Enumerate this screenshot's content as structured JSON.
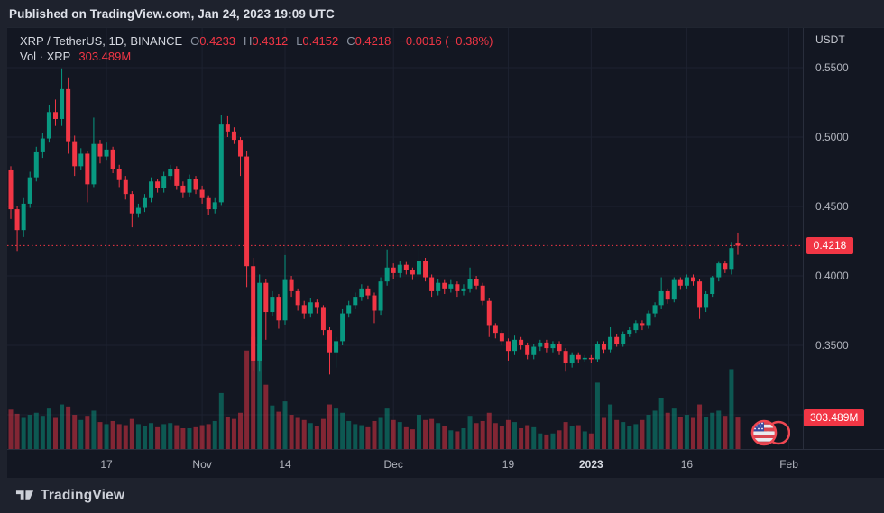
{
  "published_bar": {
    "text": "Published on TradingView.com, Jan 24, 2023 19:09 UTC"
  },
  "legend": {
    "symbol": "XRP / TetherUS, 1D, BINANCE",
    "open": {
      "label": "O",
      "value": "0.4233"
    },
    "high": {
      "label": "H",
      "value": "0.4312"
    },
    "low": {
      "label": "L",
      "value": "0.4152"
    },
    "close": {
      "label": "C",
      "value": "0.4218"
    },
    "change": "−0.0016 (−0.38%)",
    "volume_label": "Vol · XRP",
    "volume_value": "303.489M"
  },
  "price_axis": {
    "currency": "USDT",
    "ticks": [
      {
        "label": "0.5500",
        "value": 0.55
      },
      {
        "label": "0.5000",
        "value": 0.5
      },
      {
        "label": "0.4500",
        "value": 0.45
      },
      {
        "label": "0.4000",
        "value": 0.4
      },
      {
        "label": "0.3500",
        "value": 0.35
      }
    ],
    "last_price_badge": "0.4218",
    "volume_badge": "303.489M"
  },
  "time_axis": {
    "ticks": [
      {
        "label": "17",
        "day_index": 15,
        "bold": false
      },
      {
        "label": "Nov",
        "day_index": 30,
        "bold": false
      },
      {
        "label": "14",
        "day_index": 43,
        "bold": false
      },
      {
        "label": "Dec",
        "day_index": 60,
        "bold": false
      },
      {
        "label": "19",
        "day_index": 78,
        "bold": false
      },
      {
        "label": "2023",
        "day_index": 91,
        "bold": true
      },
      {
        "label": "16",
        "day_index": 106,
        "bold": false
      },
      {
        "label": "Feb",
        "day_index": 122,
        "bold": false
      }
    ]
  },
  "footer": {
    "logo_text": "TradingView"
  },
  "event_marker": {
    "name": "us-economic-events",
    "flag": "US"
  },
  "colors": {
    "up": "#089981",
    "down": "#f23645",
    "background": "#131722",
    "outer_background": "#1e222d",
    "grid": "#1d2230",
    "text_primary": "#d1d4dc",
    "text_secondary": "#b2b5be",
    "badge": "#f23645"
  },
  "chart_data": {
    "type": "candlestick",
    "title": "XRP / TetherUS",
    "exchange": "BINANCE",
    "interval": "1D",
    "quote_currency": "USDT",
    "start_date": "2022-10-02",
    "end_date": "2023-01-24",
    "ylim": [
      0.3,
      0.575
    ],
    "grid": true,
    "grid_price_levels": [
      0.55,
      0.5,
      0.45,
      0.4,
      0.35,
      0.3
    ],
    "last_open": 0.4233,
    "last_high": 0.4312,
    "last_low": 0.4152,
    "last_close": 0.4218,
    "last_change": -0.0016,
    "last_change_pct": -0.38,
    "last_volume_m": 303.489,
    "volume_unit": "millions",
    "candles_format": [
      "open",
      "high",
      "low",
      "close",
      "volume_m"
    ],
    "candles": [
      [
        0.476,
        0.479,
        0.441,
        0.448,
        380
      ],
      [
        0.448,
        0.45,
        0.418,
        0.433,
        340
      ],
      [
        0.433,
        0.456,
        0.428,
        0.452,
        300
      ],
      [
        0.452,
        0.475,
        0.449,
        0.471,
        330
      ],
      [
        0.471,
        0.493,
        0.468,
        0.489,
        350
      ],
      [
        0.489,
        0.503,
        0.485,
        0.499,
        320
      ],
      [
        0.499,
        0.523,
        0.496,
        0.518,
        390
      ],
      [
        0.518,
        0.527,
        0.508,
        0.513,
        300
      ],
      [
        0.513,
        0.5495,
        0.508,
        0.5345,
        430
      ],
      [
        0.5345,
        0.543,
        0.488,
        0.497,
        410
      ],
      [
        0.497,
        0.501,
        0.472,
        0.479,
        330
      ],
      [
        0.479,
        0.492,
        0.476,
        0.488,
        280
      ],
      [
        0.488,
        0.49,
        0.453,
        0.466,
        320
      ],
      [
        0.466,
        0.514,
        0.464,
        0.495,
        370
      ],
      [
        0.495,
        0.498,
        0.481,
        0.486,
        260
      ],
      [
        0.486,
        0.496,
        0.483,
        0.491,
        240
      ],
      [
        0.491,
        0.493,
        0.474,
        0.477,
        270
      ],
      [
        0.477,
        0.48,
        0.464,
        0.469,
        240
      ],
      [
        0.469,
        0.472,
        0.455,
        0.459,
        230
      ],
      [
        0.459,
        0.461,
        0.435,
        0.445,
        290
      ],
      [
        0.445,
        0.452,
        0.442,
        0.449,
        240
      ],
      [
        0.449,
        0.459,
        0.446,
        0.456,
        220
      ],
      [
        0.456,
        0.471,
        0.453,
        0.468,
        250
      ],
      [
        0.468,
        0.47,
        0.46,
        0.463,
        210
      ],
      [
        0.463,
        0.475,
        0.46,
        0.472,
        240
      ],
      [
        0.472,
        0.48,
        0.469,
        0.477,
        250
      ],
      [
        0.477,
        0.479,
        0.462,
        0.465,
        230
      ],
      [
        0.465,
        0.468,
        0.456,
        0.46,
        200
      ],
      [
        0.46,
        0.473,
        0.457,
        0.47,
        200
      ],
      [
        0.47,
        0.472,
        0.459,
        0.462,
        210
      ],
      [
        0.462,
        0.465,
        0.452,
        0.456,
        230
      ],
      [
        0.456,
        0.458,
        0.444,
        0.448,
        240
      ],
      [
        0.448,
        0.456,
        0.445,
        0.453,
        270
      ],
      [
        0.453,
        0.516,
        0.451,
        0.509,
        540
      ],
      [
        0.509,
        0.515,
        0.5,
        0.504,
        310
      ],
      [
        0.504,
        0.507,
        0.495,
        0.498,
        290
      ],
      [
        0.498,
        0.5,
        0.472,
        0.486,
        350
      ],
      [
        0.486,
        0.49,
        0.392,
        0.407,
        950
      ],
      [
        0.407,
        0.413,
        0.332,
        0.339,
        1080
      ],
      [
        0.339,
        0.401,
        0.331,
        0.395,
        1010
      ],
      [
        0.395,
        0.398,
        0.354,
        0.374,
        620
      ],
      [
        0.374,
        0.389,
        0.371,
        0.385,
        420
      ],
      [
        0.385,
        0.387,
        0.362,
        0.368,
        360
      ],
      [
        0.368,
        0.415,
        0.365,
        0.397,
        460
      ],
      [
        0.397,
        0.4,
        0.385,
        0.389,
        330
      ],
      [
        0.389,
        0.391,
        0.375,
        0.379,
        300
      ],
      [
        0.379,
        0.382,
        0.369,
        0.373,
        280
      ],
      [
        0.373,
        0.384,
        0.37,
        0.381,
        250
      ],
      [
        0.381,
        0.383,
        0.373,
        0.377,
        220
      ],
      [
        0.377,
        0.379,
        0.357,
        0.361,
        290
      ],
      [
        0.361,
        0.363,
        0.329,
        0.345,
        430
      ],
      [
        0.345,
        0.356,
        0.334,
        0.353,
        390
      ],
      [
        0.353,
        0.376,
        0.35,
        0.373,
        350
      ],
      [
        0.373,
        0.382,
        0.37,
        0.379,
        270
      ],
      [
        0.379,
        0.388,
        0.376,
        0.385,
        240
      ],
      [
        0.385,
        0.394,
        0.382,
        0.391,
        230
      ],
      [
        0.391,
        0.393,
        0.383,
        0.386,
        210
      ],
      [
        0.386,
        0.388,
        0.366,
        0.375,
        270
      ],
      [
        0.375,
        0.399,
        0.372,
        0.396,
        300
      ],
      [
        0.396,
        0.419,
        0.393,
        0.406,
        390
      ],
      [
        0.406,
        0.409,
        0.398,
        0.402,
        280
      ],
      [
        0.402,
        0.411,
        0.399,
        0.408,
        260
      ],
      [
        0.408,
        0.41,
        0.401,
        0.404,
        210
      ],
      [
        0.404,
        0.406,
        0.397,
        0.401,
        190
      ],
      [
        0.401,
        0.421,
        0.398,
        0.411,
        330
      ],
      [
        0.411,
        0.413,
        0.396,
        0.399,
        280
      ],
      [
        0.399,
        0.401,
        0.385,
        0.389,
        290
      ],
      [
        0.389,
        0.398,
        0.386,
        0.395,
        250
      ],
      [
        0.395,
        0.397,
        0.387,
        0.391,
        220
      ],
      [
        0.391,
        0.397,
        0.388,
        0.394,
        180
      ],
      [
        0.394,
        0.396,
        0.385,
        0.389,
        170
      ],
      [
        0.389,
        0.394,
        0.386,
        0.391,
        200
      ],
      [
        0.391,
        0.406,
        0.388,
        0.398,
        320
      ],
      [
        0.398,
        0.4,
        0.39,
        0.393,
        250
      ],
      [
        0.393,
        0.395,
        0.379,
        0.382,
        270
      ],
      [
        0.382,
        0.384,
        0.356,
        0.364,
        350
      ],
      [
        0.364,
        0.366,
        0.355,
        0.359,
        250
      ],
      [
        0.359,
        0.361,
        0.35,
        0.353,
        220
      ],
      [
        0.353,
        0.355,
        0.339,
        0.346,
        280
      ],
      [
        0.346,
        0.357,
        0.343,
        0.354,
        260
      ],
      [
        0.354,
        0.356,
        0.347,
        0.35,
        200
      ],
      [
        0.35,
        0.352,
        0.34,
        0.343,
        230
      ],
      [
        0.343,
        0.351,
        0.34,
        0.349,
        210
      ],
      [
        0.349,
        0.354,
        0.346,
        0.352,
        150
      ],
      [
        0.352,
        0.354,
        0.345,
        0.348,
        140
      ],
      [
        0.348,
        0.353,
        0.345,
        0.351,
        150
      ],
      [
        0.351,
        0.353,
        0.343,
        0.346,
        180
      ],
      [
        0.346,
        0.348,
        0.331,
        0.337,
        260
      ],
      [
        0.337,
        0.345,
        0.334,
        0.343,
        220
      ],
      [
        0.343,
        0.345,
        0.337,
        0.34,
        230
      ],
      [
        0.34,
        0.343,
        0.338,
        0.341,
        170
      ],
      [
        0.341,
        0.343,
        0.337,
        0.34,
        150
      ],
      [
        0.34,
        0.353,
        0.338,
        0.351,
        640
      ],
      [
        0.351,
        0.353,
        0.344,
        0.347,
        300
      ],
      [
        0.347,
        0.363,
        0.345,
        0.356,
        430
      ],
      [
        0.356,
        0.358,
        0.349,
        0.351,
        280
      ],
      [
        0.351,
        0.36,
        0.349,
        0.358,
        260
      ],
      [
        0.358,
        0.363,
        0.356,
        0.361,
        220
      ],
      [
        0.361,
        0.368,
        0.359,
        0.366,
        240
      ],
      [
        0.366,
        0.368,
        0.361,
        0.364,
        280
      ],
      [
        0.364,
        0.375,
        0.362,
        0.373,
        330
      ],
      [
        0.373,
        0.381,
        0.37,
        0.379,
        370
      ],
      [
        0.379,
        0.399,
        0.376,
        0.389,
        490
      ],
      [
        0.389,
        0.391,
        0.38,
        0.383,
        350
      ],
      [
        0.383,
        0.399,
        0.381,
        0.397,
        390
      ],
      [
        0.397,
        0.399,
        0.39,
        0.393,
        310
      ],
      [
        0.393,
        0.401,
        0.391,
        0.399,
        330
      ],
      [
        0.399,
        0.401,
        0.393,
        0.396,
        300
      ],
      [
        0.396,
        0.398,
        0.369,
        0.377,
        430
      ],
      [
        0.377,
        0.389,
        0.374,
        0.387,
        310
      ],
      [
        0.387,
        0.4,
        0.385,
        0.399,
        350
      ],
      [
        0.399,
        0.41,
        0.396,
        0.409,
        370
      ],
      [
        0.409,
        0.411,
        0.402,
        0.405,
        320
      ],
      [
        0.405,
        0.4245,
        0.401,
        0.42,
        770
      ],
      [
        0.4233,
        0.4312,
        0.4152,
        0.4218,
        303.489
      ]
    ]
  }
}
